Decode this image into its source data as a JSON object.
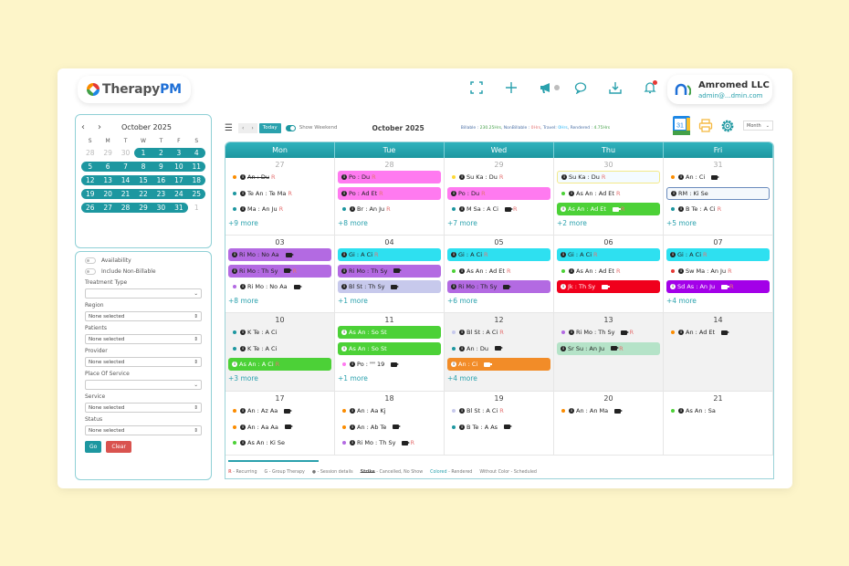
{
  "header": {
    "logo_prefix": "Therapy",
    "logo_suffix": "PM",
    "icons": [
      "fullscreen-icon",
      "plus-icon",
      "megaphone-icon",
      "chat-icon",
      "download-icon",
      "bell-icon"
    ],
    "account_name": "Amromed LLC",
    "account_email": "admin@...dmin.com"
  },
  "mini_calendar": {
    "title": "October 2025",
    "prev": "‹",
    "next": "›",
    "dow": [
      "S",
      "M",
      "T",
      "W",
      "T",
      "F",
      "S"
    ],
    "weeks": [
      [
        "28",
        "29",
        "30",
        "1",
        "2",
        "3",
        "4"
      ],
      [
        "5",
        "6",
        "7",
        "8",
        "9",
        "10",
        "11"
      ],
      [
        "12",
        "13",
        "14",
        "15",
        "16",
        "17",
        "18"
      ],
      [
        "19",
        "20",
        "21",
        "22",
        "23",
        "24",
        "25"
      ],
      [
        "26",
        "27",
        "28",
        "29",
        "30",
        "31",
        "1"
      ]
    ]
  },
  "filters": {
    "availability": "Availability",
    "non_billable": "Include Non-Billable",
    "treatment_type": {
      "label": "Treatment Type",
      "value": ""
    },
    "region": {
      "label": "Region",
      "value": "None selected"
    },
    "patients": {
      "label": "Patients",
      "value": "None selected"
    },
    "provider": {
      "label": "Provider",
      "value": "None selected"
    },
    "place_of_service": {
      "label": "Place Of Service",
      "value": ""
    },
    "service": {
      "label": "Service",
      "value": "None selected"
    },
    "status": {
      "label": "Status",
      "value": "None selected"
    },
    "go": "Go",
    "clear": "Clear"
  },
  "toolbar": {
    "prev": "‹",
    "next": "›",
    "today": "Today",
    "show_weekend": "Show Weekend",
    "title": "October 2025",
    "stats": {
      "billable_label": "Billable : ",
      "billable": "230.25Hrs",
      "nonbillable_label": ", NonBillable : ",
      "nonbillable": "0Hrs",
      "travel_label": ", Travel: ",
      "travel": "0Hrs",
      "rendered_label": ", Rendered : ",
      "rendered": "4.75Hrs"
    },
    "gcal_day": "31",
    "view": "Month"
  },
  "calendar": {
    "days": [
      "Mon",
      "Tue",
      "Wed",
      "Thu",
      "Fri"
    ],
    "weeks": [
      [
        {
          "date": "27",
          "muted": true,
          "events": [
            {
              "text": "An : Du",
              "dot": "#fb8c00",
              "strike": true,
              "rec": true
            },
            {
              "text": "Te An : Te Ma",
              "dot": "#1d97a0",
              "rec": true
            },
            {
              "text": "Ma : An Ju",
              "dot": "#1d97a0",
              "rec": true
            }
          ],
          "more": "+9 more"
        },
        {
          "date": "28",
          "muted": true,
          "events": [
            {
              "text": "Po : Du",
              "bg": "#ff7af0",
              "rec": true
            },
            {
              "text": "Po : Ad Et",
              "bg": "#ff7af0",
              "rec": true
            },
            {
              "text": "Br : An Ju",
              "dot": "#1d97a0",
              "rec": true
            }
          ],
          "more": "+8 more"
        },
        {
          "date": "29",
          "muted": true,
          "events": [
            {
              "text": "Su Ka : Du",
              "dot": "#fdd835",
              "rec": true
            },
            {
              "text": "Po : Du",
              "bg": "#ff7af0",
              "rec": true
            },
            {
              "text": "M Sa : A Ci",
              "dot": "#1d97a0",
              "cam": true,
              "rec": true
            }
          ],
          "more": "+7 more"
        },
        {
          "date": "30",
          "muted": true,
          "events": [
            {
              "text": "Su Ka : Du",
              "bg": "#f4fbff",
              "border": "#f3e98a",
              "rec": true
            },
            {
              "text": "As An : Ad Et",
              "dot": "#4cd137",
              "rec": true
            },
            {
              "text": "As An : Ad Et",
              "bg": "#4cd137",
              "dark": true,
              "cam": true,
              "rec": true
            }
          ],
          "more": "+2 more"
        },
        {
          "date": "31",
          "muted": true,
          "events": [
            {
              "text": "An : Ci",
              "dot": "#fb8c00",
              "cam": true
            },
            {
              "text": "RM : Ki Se",
              "bg": "#f4f8fc",
              "border": "#6a8bbd"
            },
            {
              "text": "B Te : A Ci",
              "dot": "#1d97a0",
              "rec": true
            }
          ],
          "more": "+5 more"
        }
      ],
      [
        {
          "date": "03",
          "events": [
            {
              "text": "Ri Mo : No Aa",
              "bg": "#b36ae2",
              "cam": true
            },
            {
              "text": "Ri Mo : Th Sy",
              "bg": "#b36ae2",
              "cam": true,
              "rec": true
            },
            {
              "text": "Ri Mo : No Aa",
              "dot": "#b36ae2",
              "cam": true
            }
          ],
          "more": "+8 more"
        },
        {
          "date": "04",
          "events": [
            {
              "text": "Gi : A Ci",
              "bg": "#2ee0f0",
              "rec": true
            },
            {
              "text": "Ri Mo : Th Sy",
              "bg": "#b36ae2",
              "cam": true
            },
            {
              "text": "Bl St : Th Sy",
              "bg": "#c7c9ec",
              "cam": true
            }
          ],
          "more": "+1 more"
        },
        {
          "date": "05",
          "events": [
            {
              "text": "Gi : A Ci",
              "bg": "#2ee0f0",
              "rec": true
            },
            {
              "text": "As An : Ad Et",
              "dot": "#4cd137",
              "rec": true
            },
            {
              "text": "Ri Mo : Th Sy",
              "bg": "#b36ae2",
              "cam": true
            }
          ],
          "more": "+6 more"
        },
        {
          "date": "06",
          "events": [
            {
              "text": "Gi : A Ci",
              "bg": "#2ee0f0",
              "rec": true
            },
            {
              "text": "As An : Ad Et",
              "dot": "#4cd137",
              "rec": true
            },
            {
              "text": "Jk : Th Sy",
              "bg": "#f0001c",
              "dark": true,
              "cam": true
            }
          ],
          "more": ""
        },
        {
          "date": "07",
          "events": [
            {
              "text": "Gi : A Ci",
              "bg": "#2ee0f0",
              "rec": true
            },
            {
              "text": "Sw Ma : An Ju",
              "dot": "#e53935",
              "rec": true
            },
            {
              "text": "Sd As : An Ju",
              "bg": "#a300e8",
              "dark": true,
              "cam": true,
              "rec": true
            }
          ],
          "more": "+4 more"
        }
      ],
      [
        {
          "date": "10",
          "gray": true,
          "events": [
            {
              "text": "K Te : A Ci",
              "dot": "#1d97a0"
            },
            {
              "text": "K Te : A Ci",
              "dot": "#1d97a0"
            },
            {
              "text": "As An : A Ci",
              "bg": "#4cd137",
              "dark": true,
              "rec": true
            }
          ],
          "more": "+3 more"
        },
        {
          "date": "11",
          "events": [
            {
              "text": "As An : So St",
              "bg": "#4cd137",
              "dark": true
            },
            {
              "text": "As An : So St",
              "bg": "#4cd137",
              "dark": true
            },
            {
              "text": "Po : \"\" 19",
              "dot": "#ff7af0",
              "cam": true
            }
          ],
          "more": "+1 more"
        },
        {
          "date": "12",
          "gray": true,
          "events": [
            {
              "text": "Bl St : A Ci",
              "dot": "#c7c9ec",
              "rec": true
            },
            {
              "text": "An : Du",
              "dot": "#1d97a0",
              "cam": true
            },
            {
              "text": "An : Ci",
              "bg": "#f28c28",
              "dark": true,
              "cam": true
            }
          ],
          "more": "+4 more"
        },
        {
          "date": "13",
          "gray": true,
          "events": [
            {
              "text": "Ri Mo : Th Sy",
              "dot": "#b36ae2",
              "cam": true,
              "rec": true
            },
            {
              "text": "Sr Su : An Ju",
              "bg": "#b5e3c8",
              "cam": true,
              "rec": true
            }
          ],
          "more": ""
        },
        {
          "date": "14",
          "gray": true,
          "events": [
            {
              "text": "An : Ad Et",
              "dot": "#fb8c00",
              "cam": true
            }
          ],
          "more": ""
        }
      ],
      [
        {
          "date": "17",
          "events": [
            {
              "text": "An : Az Aa",
              "dot": "#fb8c00",
              "cam": true
            },
            {
              "text": "An : Aa Aa",
              "dot": "#fb8c00",
              "cam": true
            },
            {
              "text": "As An : Ki Se",
              "dot": "#4cd137"
            }
          ],
          "more": ""
        },
        {
          "date": "18",
          "events": [
            {
              "text": "An : Aa Kj",
              "dot": "#fb8c00"
            },
            {
              "text": "An : Ab Te",
              "dot": "#fb8c00",
              "cam": true
            },
            {
              "text": "Ri Mo : Th Sy",
              "dot": "#b36ae2",
              "cam": true,
              "rec": true
            }
          ],
          "more": ""
        },
        {
          "date": "19",
          "events": [
            {
              "text": "Bl St : A Ci",
              "dot": "#c7c9ec",
              "rec": true
            },
            {
              "text": "B Te : A As",
              "dot": "#1d97a0",
              "cam": true
            }
          ],
          "more": ""
        },
        {
          "date": "20",
          "events": [
            {
              "text": "An : An Ma",
              "dot": "#fb8c00",
              "cam": true
            }
          ],
          "more": ""
        },
        {
          "date": "21",
          "events": [
            {
              "text": "As An : Sa",
              "dot": "#4cd137"
            }
          ],
          "more": ""
        }
      ]
    ]
  },
  "legend": {
    "r": "R",
    "r_text": " - Recurring",
    "g": "G - Group Therapy",
    "info": "- Session details",
    "strike": "Strike",
    "strike_text": " - Cancelled, No Show",
    "colored": "Colored",
    "colored_text": " - Rendered",
    "plain": "Without Color - Scheduled"
  },
  "colors": {
    "accent": "#1d97a0",
    "background": "#fdf5c9",
    "recurring": "#e57373"
  }
}
